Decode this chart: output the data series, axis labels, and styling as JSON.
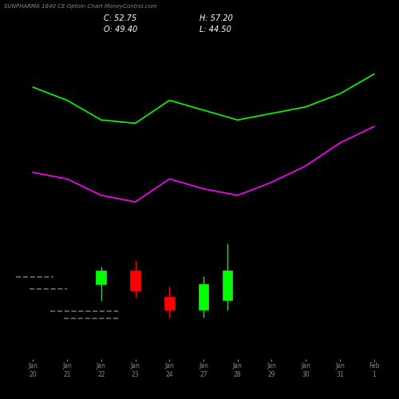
{
  "title": "SUNPHARMA 1840 CE Option Chart MoneyControl.com",
  "background_color": "#000000",
  "text_color": "#ffffff",
  "green_line_color": "#00ff00",
  "magenta_line_color": "#ff00ff",
  "x_labels": [
    "Jan\n20",
    "Jan\n21",
    "Jan\n22",
    "Jan\n23",
    "Jan\n24",
    "Jan\n27",
    "Jan\n28",
    "Jan\n29",
    "Jan\n30",
    "Jan\n31",
    "Feb\n1"
  ],
  "candle_positions": [
    2,
    3,
    4,
    5,
    5.7
  ],
  "candles": [
    {
      "open": 28.0,
      "high": 33.0,
      "low": 23.0,
      "close": 32.0,
      "color": "green"
    },
    {
      "open": 32.0,
      "high": 35.0,
      "low": 24.0,
      "close": 26.0,
      "color": "red"
    },
    {
      "open": 24.0,
      "high": 27.0,
      "low": 18.0,
      "close": 20.0,
      "color": "red"
    },
    {
      "open": 20.0,
      "high": 30.0,
      "low": 18.0,
      "close": 28.0,
      "color": "green"
    },
    {
      "open": 23.0,
      "high": 40.0,
      "low": 20.0,
      "close": 32.0,
      "color": "green"
    }
  ],
  "dash_lines": [
    {
      "x0": -0.5,
      "x1": 0.6,
      "y": 30.0
    },
    {
      "x0": -0.1,
      "x1": 1.0,
      "y": 26.5
    },
    {
      "x0": 0.5,
      "x1": 2.5,
      "y": 19.5
    },
    {
      "x0": 0.9,
      "x1": 2.5,
      "y": 17.5
    }
  ],
  "green_line_x": [
    0,
    1,
    2,
    3,
    4,
    5,
    6,
    7,
    8,
    9,
    10
  ],
  "green_line_y": [
    88,
    84,
    78,
    77,
    84,
    81,
    78,
    80,
    82,
    86,
    92
  ],
  "magenta_line_x": [
    0,
    1,
    2,
    3,
    4,
    5,
    6,
    7,
    8,
    9,
    10
  ],
  "magenta_line_y": [
    62,
    60,
    55,
    53,
    60,
    57,
    55,
    59,
    64,
    71,
    76
  ],
  "ylim": [
    5,
    100
  ],
  "xlim": [
    -0.5,
    10.5
  ]
}
